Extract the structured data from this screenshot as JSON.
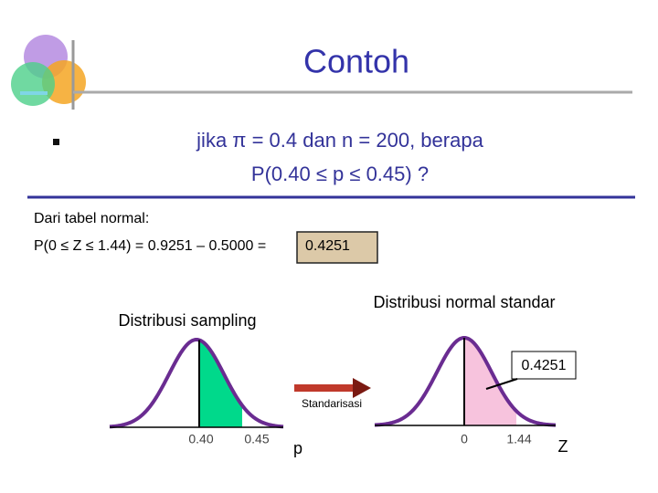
{
  "header": {
    "title": "Contoh"
  },
  "question": {
    "line1": "jika π = 0.4  dan  n = 200, berapa",
    "line2": "P(0.40 ≤ p ≤ 0.45) ?"
  },
  "table_note": {
    "label": "Dari tabel normal:",
    "formula": "P(0 ≤ Z ≤ 1.44) =  0.9251 – 0.5000 = ",
    "result": "0.4251"
  },
  "left_curve": {
    "title": "Distribusi sampling",
    "low": "0.40",
    "high": "0.45",
    "axis": "p"
  },
  "arrow": {
    "label": "Standarisasi"
  },
  "right_curve": {
    "title": "Distribusi normal standar",
    "area": "0.4251",
    "low": "0",
    "high": "1.44",
    "axis": "Z"
  }
}
